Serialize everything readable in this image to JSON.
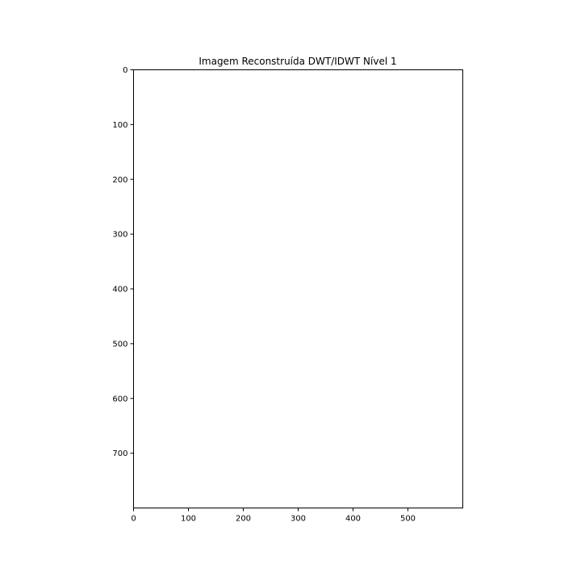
{
  "chart_data": {
    "type": "heatmap",
    "title": "Imagem Reconstruída DWT/IDWT Nível 1",
    "xlabel": "",
    "ylabel": "",
    "xlim": [
      0,
      600
    ],
    "ylim": [
      800,
      0
    ],
    "y_inverted": true,
    "x_ticks": [
      0,
      100,
      200,
      300,
      400,
      500
    ],
    "y_ticks": [
      0,
      100,
      200,
      300,
      400,
      500,
      600,
      700
    ],
    "grid": false,
    "legend": "none",
    "image_fill": "#ffffff"
  }
}
